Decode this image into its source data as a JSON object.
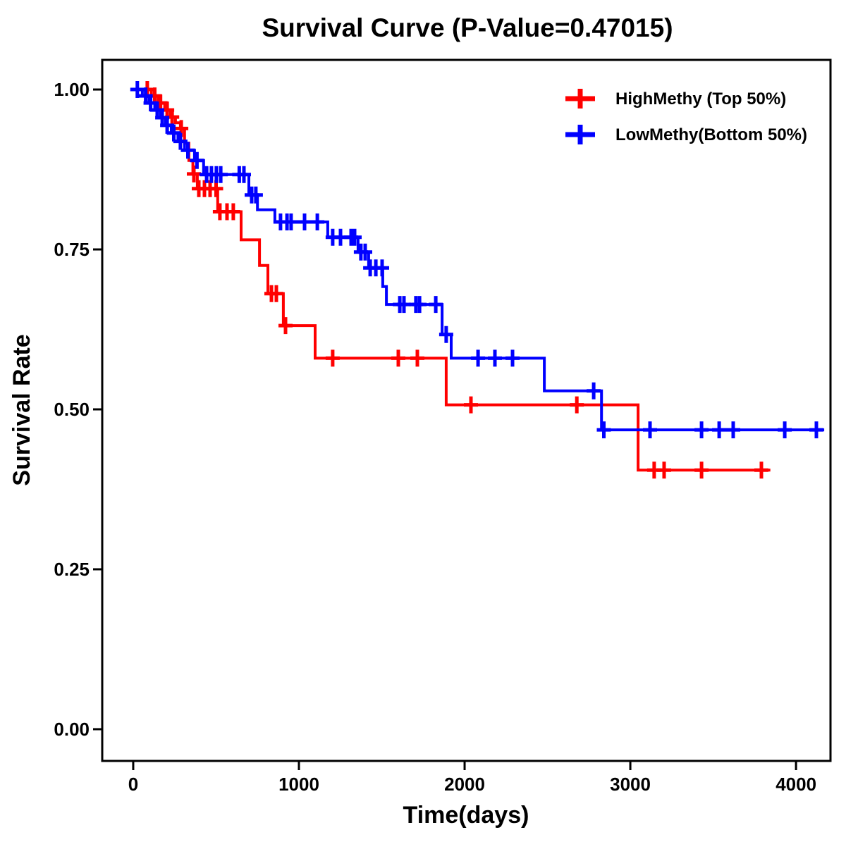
{
  "chart_data": {
    "type": "line",
    "subtype": "kaplan-meier-step",
    "title": "Survival Curve (P-Value=0.47015)",
    "xlabel": "Time(days)",
    "ylabel": "Survival Rate",
    "p_value_shown_in_title": "0.47015",
    "grid": false,
    "legend_position": "top-right",
    "xlim": [
      -187,
      4208
    ],
    "ylim": [
      -0.0496,
      1.0463
    ],
    "x_ticks": [
      0,
      1000,
      2000,
      3000,
      4000
    ],
    "x_tick_labels": [
      "0",
      "1000",
      "2000",
      "3000",
      "4000"
    ],
    "y_ticks": [
      0.0,
      0.25,
      0.5,
      0.75,
      1.0
    ],
    "y_tick_labels": [
      "0.00",
      "0.25",
      "0.50",
      "0.75",
      "1.00"
    ],
    "series": [
      {
        "name": "HighMethy (Top 50%)",
        "color": "#FF0000",
        "end_time": 3845,
        "steps": [
          [
            0,
            1.0
          ],
          [
            110,
            0.99
          ],
          [
            150,
            0.979
          ],
          [
            190,
            0.968
          ],
          [
            225,
            0.957
          ],
          [
            255,
            0.948
          ],
          [
            285,
            0.939
          ],
          [
            310,
            0.916
          ],
          [
            336,
            0.889
          ],
          [
            360,
            0.868
          ],
          [
            387,
            0.845
          ],
          [
            510,
            0.809
          ],
          [
            651,
            0.765
          ],
          [
            762,
            0.725
          ],
          [
            813,
            0.681
          ],
          [
            906,
            0.631
          ],
          [
            1098,
            0.58
          ],
          [
            1889,
            0.507
          ],
          [
            3047,
            0.405
          ]
        ],
        "censors": [
          [
            85,
            1.0
          ],
          [
            130,
            0.99
          ],
          [
            165,
            0.979
          ],
          [
            205,
            0.968
          ],
          [
            235,
            0.957
          ],
          [
            290,
            0.939
          ],
          [
            366,
            0.868
          ],
          [
            396,
            0.845
          ],
          [
            430,
            0.845
          ],
          [
            464,
            0.845
          ],
          [
            500,
            0.845
          ],
          [
            523,
            0.809
          ],
          [
            566,
            0.809
          ],
          [
            604,
            0.809
          ],
          [
            834,
            0.681
          ],
          [
            864,
            0.681
          ],
          [
            919,
            0.631
          ],
          [
            1204,
            0.58
          ],
          [
            1600,
            0.58
          ],
          [
            1715,
            0.58
          ],
          [
            2038,
            0.507
          ],
          [
            2677,
            0.507
          ],
          [
            3144,
            0.405
          ],
          [
            3204,
            0.405
          ],
          [
            3430,
            0.405
          ],
          [
            3791,
            0.405
          ]
        ]
      },
      {
        "name": "LowMethy(Bottom 50%)",
        "color": "#0000FF",
        "end_time": 4170,
        "steps": [
          [
            0,
            1.0
          ],
          [
            55,
            0.99
          ],
          [
            95,
            0.979
          ],
          [
            130,
            0.968
          ],
          [
            165,
            0.956
          ],
          [
            195,
            0.944
          ],
          [
            230,
            0.932
          ],
          [
            270,
            0.919
          ],
          [
            310,
            0.905
          ],
          [
            370,
            0.889
          ],
          [
            425,
            0.867
          ],
          [
            698,
            0.835
          ],
          [
            750,
            0.812
          ],
          [
            855,
            0.793
          ],
          [
            1174,
            0.769
          ],
          [
            1357,
            0.746
          ],
          [
            1421,
            0.721
          ],
          [
            1506,
            0.692
          ],
          [
            1528,
            0.664
          ],
          [
            1864,
            0.617
          ],
          [
            1919,
            0.58
          ],
          [
            2481,
            0.529
          ],
          [
            2826,
            0.468
          ]
        ],
        "censors": [
          [
            25,
            1.0
          ],
          [
            75,
            0.99
          ],
          [
            105,
            0.979
          ],
          [
            145,
            0.968
          ],
          [
            175,
            0.956
          ],
          [
            205,
            0.944
          ],
          [
            245,
            0.932
          ],
          [
            285,
            0.919
          ],
          [
            330,
            0.905
          ],
          [
            385,
            0.889
          ],
          [
            443,
            0.867
          ],
          [
            472,
            0.867
          ],
          [
            502,
            0.867
          ],
          [
            528,
            0.867
          ],
          [
            640,
            0.867
          ],
          [
            668,
            0.867
          ],
          [
            715,
            0.835
          ],
          [
            740,
            0.835
          ],
          [
            889,
            0.793
          ],
          [
            928,
            0.793
          ],
          [
            953,
            0.793
          ],
          [
            1034,
            0.793
          ],
          [
            1111,
            0.793
          ],
          [
            1204,
            0.769
          ],
          [
            1251,
            0.769
          ],
          [
            1315,
            0.769
          ],
          [
            1336,
            0.769
          ],
          [
            1374,
            0.746
          ],
          [
            1400,
            0.746
          ],
          [
            1430,
            0.721
          ],
          [
            1464,
            0.721
          ],
          [
            1502,
            0.721
          ],
          [
            1609,
            0.664
          ],
          [
            1634,
            0.664
          ],
          [
            1706,
            0.664
          ],
          [
            1728,
            0.664
          ],
          [
            1826,
            0.664
          ],
          [
            1889,
            0.617
          ],
          [
            2081,
            0.58
          ],
          [
            2183,
            0.58
          ],
          [
            2289,
            0.58
          ],
          [
            2779,
            0.529
          ],
          [
            2840,
            0.468
          ],
          [
            3119,
            0.468
          ],
          [
            3430,
            0.468
          ],
          [
            3536,
            0.468
          ],
          [
            3621,
            0.468
          ],
          [
            3932,
            0.468
          ],
          [
            4123,
            0.468
          ]
        ]
      }
    ]
  }
}
